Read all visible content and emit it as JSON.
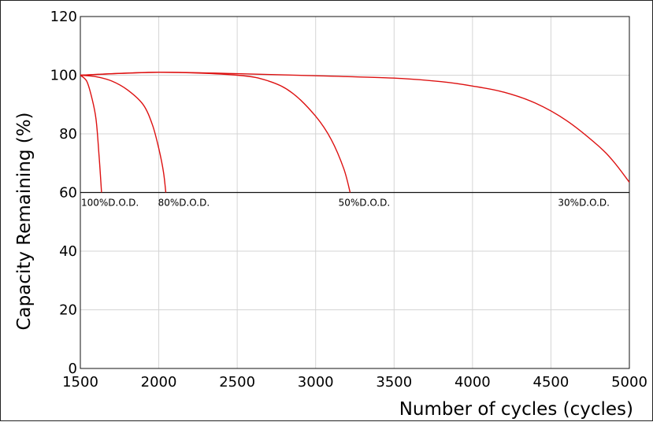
{
  "chart_data": {
    "type": "line",
    "title": "",
    "xlabel": "Number of cycles (cycles)",
    "ylabel": "Capacity Remaining  (%)",
    "xlim": [
      1500,
      5000
    ],
    "ylim": [
      0,
      120
    ],
    "xticks": [
      1500,
      2000,
      2500,
      3000,
      3500,
      4000,
      4500,
      5000
    ],
    "yticks": [
      0,
      20,
      40,
      60,
      80,
      100,
      120
    ],
    "grid": true,
    "line_color": "#dd1111",
    "grid_color": "#d4d4d4",
    "threshold_line": 60,
    "series": [
      {
        "x": [
          1500,
          1540,
          1570,
          1600,
          1620,
          1635
        ],
        "y": [
          100,
          98,
          93,
          85,
          72,
          60
        ]
      },
      {
        "x": [
          1500,
          1600,
          1700,
          1800,
          1900,
          1960,
          2000,
          2030,
          2045
        ],
        "y": [
          100,
          99.5,
          98,
          95,
          90,
          83,
          75,
          67,
          60
        ]
      },
      {
        "x": [
          1500,
          2000,
          2500,
          2700,
          2850,
          3000,
          3100,
          3180,
          3220
        ],
        "y": [
          100,
          101,
          100,
          98,
          94,
          86,
          78,
          68,
          60
        ]
      },
      {
        "x": [
          1500,
          2000,
          2500,
          3000,
          3500,
          3800,
          4000,
          4200,
          4400,
          4600,
          4800,
          4900,
          5000
        ],
        "y": [
          100,
          101,
          100.5,
          99.8,
          99,
          97.8,
          96.3,
          94.2,
          90.5,
          84.5,
          76,
          70.5,
          63.5
        ]
      }
    ],
    "annotations": [
      {
        "text": "100%D.O.D.",
        "x": 1500,
        "y": 60
      },
      {
        "text": "80%D.O.D.",
        "x": 1990,
        "y": 60
      },
      {
        "text": "50%D.O.D.",
        "x": 3140,
        "y": 60
      },
      {
        "text": "30%D.O.D.",
        "x": 4540,
        "y": 60
      }
    ]
  }
}
